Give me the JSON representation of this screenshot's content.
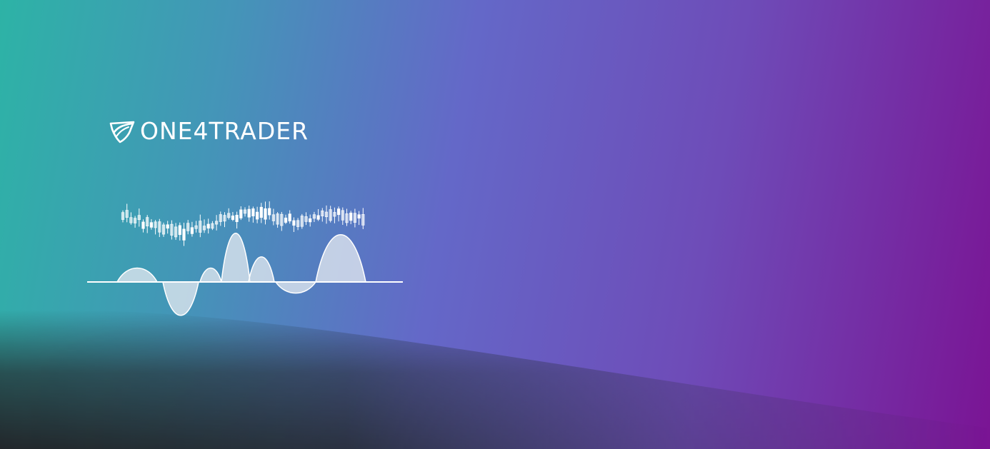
{
  "brand": {
    "name": "ONE4TRADER",
    "logo_icon": "shield-swoosh-icon"
  },
  "artwork": {
    "candles_icon": "candlestick-chart-icon",
    "wave_icon": "oscillator-wave-icon"
  },
  "colors": {
    "gradient_left": "#2db3a6",
    "gradient_mid": "#6468c8",
    "gradient_right": "#7a1494",
    "bottom_dark": "#22262a",
    "art": "#ffffff"
  }
}
